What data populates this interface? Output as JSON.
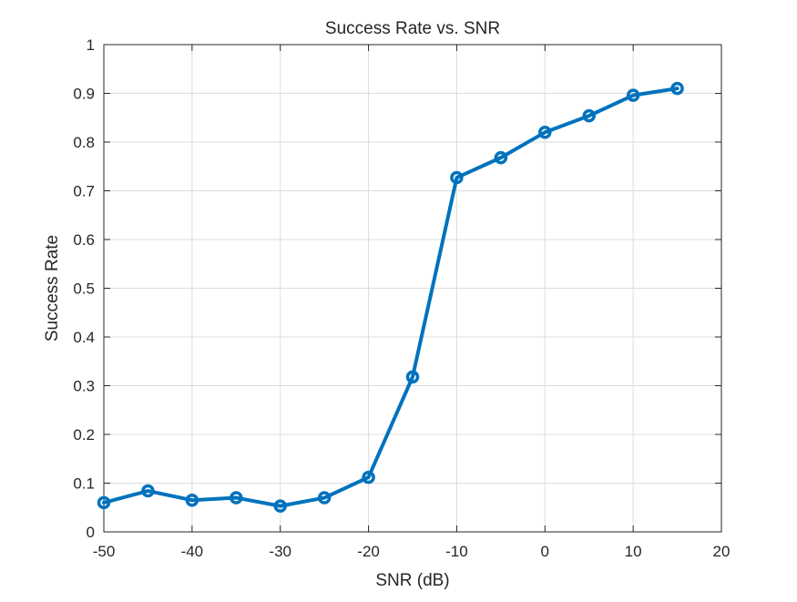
{
  "chart_data": {
    "type": "line",
    "title": "Success Rate vs. SNR",
    "xlabel": "SNR (dB)",
    "ylabel": "Success Rate",
    "xlim": [
      -50,
      20
    ],
    "ylim": [
      0,
      1
    ],
    "xticks": [
      -50,
      -40,
      -30,
      -20,
      -10,
      0,
      10,
      20
    ],
    "yticks": [
      0,
      0.1,
      0.2,
      0.3,
      0.4,
      0.5,
      0.6,
      0.7,
      0.8,
      0.9,
      1
    ],
    "xtick_labels": [
      "-50",
      "-40",
      "-30",
      "-20",
      "-10",
      "0",
      "10",
      "20"
    ],
    "ytick_labels": [
      "0",
      "0.1",
      "0.2",
      "0.3",
      "0.4",
      "0.5",
      "0.6",
      "0.7",
      "0.8",
      "0.9",
      "1"
    ],
    "grid": true,
    "marker": "circle",
    "series_color": "#0072BD",
    "x": [
      -50,
      -45,
      -40,
      -35,
      -30,
      -25,
      -20,
      -15,
      -10,
      -5,
      0,
      5,
      10,
      15
    ],
    "series": [
      {
        "values": [
          0.06,
          0.084,
          0.065,
          0.07,
          0.053,
          0.07,
          0.112,
          0.318,
          0.727,
          0.768,
          0.82,
          0.854,
          0.896,
          0.91
        ]
      }
    ]
  }
}
